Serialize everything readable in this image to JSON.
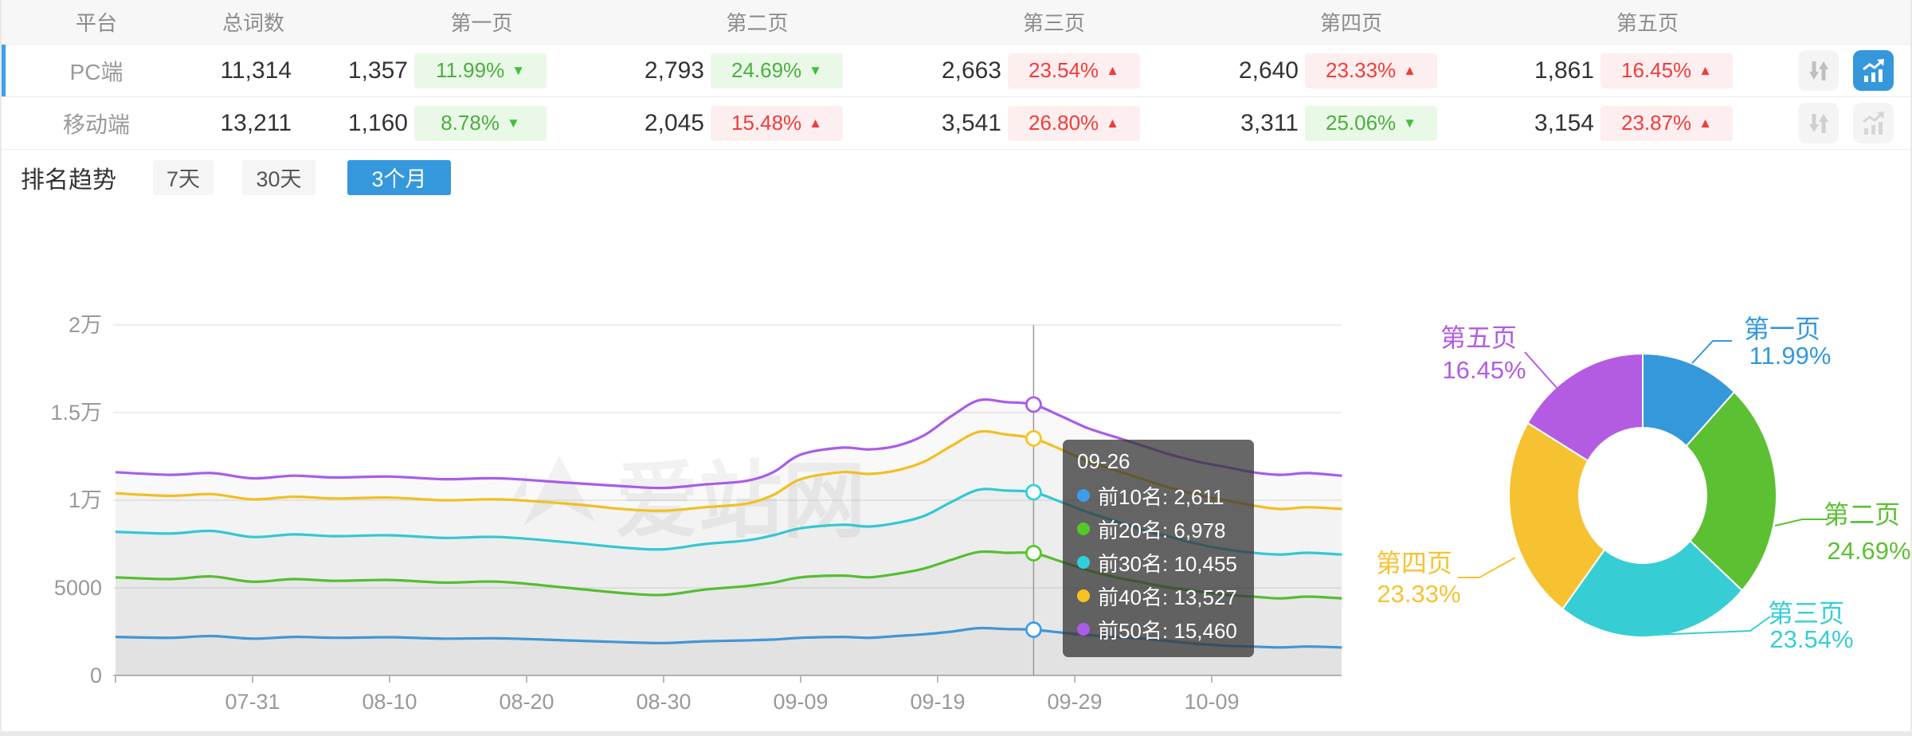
{
  "table": {
    "headers": [
      "平台",
      "总词数",
      "第一页",
      "第二页",
      "第三页",
      "第四页",
      "第五页"
    ],
    "rows": [
      {
        "platform": "PC端",
        "total": "11,314",
        "active": true,
        "pages": [
          {
            "count": "1,357",
            "pct": "11.99%",
            "dir": "down"
          },
          {
            "count": "2,793",
            "pct": "24.69%",
            "dir": "down"
          },
          {
            "count": "2,663",
            "pct": "23.54%",
            "dir": "up"
          },
          {
            "count": "2,640",
            "pct": "23.33%",
            "dir": "up"
          },
          {
            "count": "1,861",
            "pct": "16.45%",
            "dir": "up"
          }
        ]
      },
      {
        "platform": "移动端",
        "total": "13,211",
        "active": false,
        "pages": [
          {
            "count": "1,160",
            "pct": "8.78%",
            "dir": "down"
          },
          {
            "count": "2,045",
            "pct": "15.48%",
            "dir": "up"
          },
          {
            "count": "3,541",
            "pct": "26.80%",
            "dir": "up"
          },
          {
            "count": "3,311",
            "pct": "25.06%",
            "dir": "down"
          },
          {
            "count": "3,154",
            "pct": "23.87%",
            "dir": "up"
          }
        ]
      }
    ]
  },
  "trend": {
    "title": "排名趋势",
    "tabs": [
      {
        "label": "7天",
        "active": false
      },
      {
        "label": "30天",
        "active": false
      },
      {
        "label": "3个月",
        "active": true
      }
    ]
  },
  "watermark": "爱站网",
  "colors": {
    "accent_blue": "#3598dc",
    "row_accent": "#3da0f0",
    "badge_green_text": "#4cae3e",
    "badge_red_text": "#f23c3c"
  },
  "chart_data": [
    {
      "type": "line",
      "title": "排名趋势 (3个月)",
      "xlabel": "",
      "ylabel": "",
      "ylim": [
        0,
        20000
      ],
      "grid": true,
      "x_ticks": [
        {
          "day": 0,
          "label": ""
        },
        {
          "day": 10,
          "label": "07-31"
        },
        {
          "day": 20,
          "label": "08-10"
        },
        {
          "day": 30,
          "label": "08-20"
        },
        {
          "day": 40,
          "label": "08-30"
        },
        {
          "day": 50,
          "label": "09-09"
        },
        {
          "day": 60,
          "label": "09-19"
        },
        {
          "day": 70,
          "label": "09-29"
        },
        {
          "day": 80,
          "label": "10-09"
        }
      ],
      "x_max": 89.5,
      "y_ticks": [
        {
          "v": 0,
          "label": "0"
        },
        {
          "v": 5000,
          "label": "5000"
        },
        {
          "v": 10000,
          "label": "1万"
        },
        {
          "v": 15000,
          "label": "1.5万"
        },
        {
          "v": 20000,
          "label": "2万"
        }
      ],
      "marker_day": 67,
      "series": [
        {
          "name": "前10名",
          "color": "#3b9ee8",
          "points": [
            [
              0,
              2200
            ],
            [
              4,
              2150
            ],
            [
              7,
              2250
            ],
            [
              10,
              2100
            ],
            [
              13,
              2200
            ],
            [
              16,
              2150
            ],
            [
              20,
              2180
            ],
            [
              24,
              2100
            ],
            [
              28,
              2120
            ],
            [
              33,
              2000
            ],
            [
              37,
              1900
            ],
            [
              40,
              1850
            ],
            [
              43,
              1950
            ],
            [
              46,
              2000
            ],
            [
              48,
              2050
            ],
            [
              50,
              2150
            ],
            [
              53,
              2200
            ],
            [
              55,
              2150
            ],
            [
              57,
              2250
            ],
            [
              59,
              2350
            ],
            [
              61,
              2500
            ],
            [
              63,
              2700
            ],
            [
              65,
              2650
            ],
            [
              67,
              2611
            ],
            [
              69,
              2450
            ],
            [
              71,
              2300
            ],
            [
              73,
              2200
            ],
            [
              75,
              2100
            ],
            [
              77,
              1950
            ],
            [
              79,
              1800
            ],
            [
              81,
              1700
            ],
            [
              83,
              1650
            ],
            [
              85,
              1600
            ],
            [
              87,
              1650
            ],
            [
              89.5,
              1600
            ]
          ]
        },
        {
          "name": "前20名",
          "color": "#53c929",
          "points": [
            [
              0,
              5600
            ],
            [
              4,
              5500
            ],
            [
              7,
              5650
            ],
            [
              10,
              5350
            ],
            [
              13,
              5500
            ],
            [
              16,
              5400
            ],
            [
              20,
              5450
            ],
            [
              24,
              5300
            ],
            [
              28,
              5350
            ],
            [
              33,
              5000
            ],
            [
              37,
              4700
            ],
            [
              40,
              4600
            ],
            [
              43,
              4900
            ],
            [
              46,
              5100
            ],
            [
              48,
              5300
            ],
            [
              50,
              5600
            ],
            [
              53,
              5700
            ],
            [
              55,
              5600
            ],
            [
              57,
              5800
            ],
            [
              59,
              6100
            ],
            [
              61,
              6600
            ],
            [
              63,
              7050
            ],
            [
              65,
              7000
            ],
            [
              67,
              6978
            ],
            [
              69,
              6500
            ],
            [
              71,
              6000
            ],
            [
              73,
              5600
            ],
            [
              75,
              5300
            ],
            [
              77,
              5000
            ],
            [
              79,
              4800
            ],
            [
              81,
              4600
            ],
            [
              83,
              4500
            ],
            [
              85,
              4400
            ],
            [
              87,
              4500
            ],
            [
              89.5,
              4400
            ]
          ]
        },
        {
          "name": "前30名",
          "color": "#2fd0dc",
          "points": [
            [
              0,
              8200
            ],
            [
              4,
              8100
            ],
            [
              7,
              8250
            ],
            [
              10,
              7900
            ],
            [
              13,
              8050
            ],
            [
              16,
              7950
            ],
            [
              20,
              8000
            ],
            [
              24,
              7850
            ],
            [
              28,
              7900
            ],
            [
              33,
              7600
            ],
            [
              37,
              7300
            ],
            [
              40,
              7200
            ],
            [
              43,
              7500
            ],
            [
              46,
              7700
            ],
            [
              48,
              8000
            ],
            [
              50,
              8400
            ],
            [
              53,
              8600
            ],
            [
              55,
              8500
            ],
            [
              57,
              8700
            ],
            [
              59,
              9100
            ],
            [
              61,
              9900
            ],
            [
              63,
              10600
            ],
            [
              65,
              10550
            ],
            [
              67,
              10455
            ],
            [
              69,
              9900
            ],
            [
              71,
              9300
            ],
            [
              73,
              8800
            ],
            [
              75,
              8300
            ],
            [
              77,
              7900
            ],
            [
              79,
              7500
            ],
            [
              81,
              7200
            ],
            [
              83,
              7000
            ],
            [
              85,
              6900
            ],
            [
              87,
              7000
            ],
            [
              89.5,
              6900
            ]
          ]
        },
        {
          "name": "前40名",
          "color": "#f8c320",
          "points": [
            [
              0,
              10400
            ],
            [
              4,
              10250
            ],
            [
              7,
              10350
            ],
            [
              10,
              10050
            ],
            [
              13,
              10200
            ],
            [
              16,
              10100
            ],
            [
              20,
              10150
            ],
            [
              24,
              10000
            ],
            [
              28,
              10050
            ],
            [
              33,
              9800
            ],
            [
              37,
              9500
            ],
            [
              40,
              9400
            ],
            [
              43,
              9600
            ],
            [
              46,
              9800
            ],
            [
              48,
              10300
            ],
            [
              50,
              11200
            ],
            [
              53,
              11600
            ],
            [
              55,
              11500
            ],
            [
              57,
              11700
            ],
            [
              59,
              12200
            ],
            [
              61,
              13100
            ],
            [
              63,
              13900
            ],
            [
              65,
              13750
            ],
            [
              67,
              13527
            ],
            [
              69,
              12900
            ],
            [
              71,
              12200
            ],
            [
              73,
              11700
            ],
            [
              75,
              11200
            ],
            [
              77,
              10700
            ],
            [
              79,
              10300
            ],
            [
              81,
              10000
            ],
            [
              83,
              9700
            ],
            [
              85,
              9500
            ],
            [
              87,
              9600
            ],
            [
              89.5,
              9500
            ]
          ]
        },
        {
          "name": "前50名",
          "color": "#aa5ce8",
          "points": [
            [
              0,
              11600
            ],
            [
              4,
              11450
            ],
            [
              7,
              11550
            ],
            [
              10,
              11250
            ],
            [
              13,
              11400
            ],
            [
              16,
              11300
            ],
            [
              20,
              11350
            ],
            [
              24,
              11200
            ],
            [
              28,
              11250
            ],
            [
              33,
              11000
            ],
            [
              37,
              10800
            ],
            [
              40,
              10700
            ],
            [
              43,
              10900
            ],
            [
              46,
              11100
            ],
            [
              48,
              11600
            ],
            [
              50,
              12600
            ],
            [
              53,
              13000
            ],
            [
              55,
              12900
            ],
            [
              57,
              13100
            ],
            [
              59,
              13700
            ],
            [
              61,
              14800
            ],
            [
              63,
              15700
            ],
            [
              65,
              15600
            ],
            [
              67,
              15460
            ],
            [
              69,
              14800
            ],
            [
              71,
              14100
            ],
            [
              73,
              13600
            ],
            [
              75,
              13100
            ],
            [
              77,
              12600
            ],
            [
              79,
              12200
            ],
            [
              81,
              11900
            ],
            [
              83,
              11600
            ],
            [
              85,
              11450
            ],
            [
              87,
              11550
            ],
            [
              89.5,
              11400
            ]
          ]
        }
      ],
      "tooltip": {
        "title": "09-26",
        "rows": [
          {
            "label": "前10名",
            "value": "2,611"
          },
          {
            "label": "前20名",
            "value": "6,978"
          },
          {
            "label": "前30名",
            "value": "10,455"
          },
          {
            "label": "前40名",
            "value": "13,527"
          },
          {
            "label": "前50名",
            "value": "15,460"
          }
        ]
      }
    },
    {
      "type": "pie",
      "donut": true,
      "labels": [
        "第一页",
        "第二页",
        "第三页",
        "第四页",
        "第五页"
      ],
      "values": [
        11.99,
        24.69,
        23.54,
        23.33,
        16.45
      ],
      "value_texts": [
        "11.99%",
        "24.69%",
        "23.54%",
        "23.33%",
        "16.45%"
      ],
      "colors": [
        "#3598db",
        "#5cc033",
        "#36ced4",
        "#f7c232",
        "#b35ce2"
      ]
    }
  ]
}
